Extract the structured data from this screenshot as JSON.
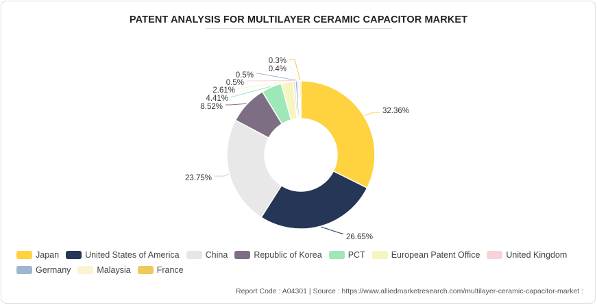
{
  "title": "PATENT ANALYSIS FOR MULTILAYER CERAMIC CAPACITOR MARKET",
  "footer": "Report Code : A04301  |  Source : https://www.alliedmarketresearch.com/multilayer-ceramic-capacitor-market :",
  "chart_data": {
    "type": "pie",
    "variant": "donut",
    "title": "PATENT ANALYSIS FOR MULTILAYER CERAMIC CAPACITOR MARKET",
    "legend_position": "bottom",
    "slices": [
      {
        "name": "Japan",
        "value": 32.36,
        "label": "32.36%",
        "color": "#FFD23F"
      },
      {
        "name": "United States of America",
        "value": 26.65,
        "label": "26.65%",
        "color": "#253656"
      },
      {
        "name": "China",
        "value": 23.75,
        "label": "23.75%",
        "color": "#E8E8E8"
      },
      {
        "name": "Republic of Korea",
        "value": 8.52,
        "label": "8.52%",
        "color": "#7E6E84"
      },
      {
        "name": "PCT",
        "value": 4.41,
        "label": "4.41%",
        "color": "#9EE8B8"
      },
      {
        "name": "European Patent Office",
        "value": 2.61,
        "label": "2.61%",
        "color": "#F6F5C0"
      },
      {
        "name": "United Kingdom",
        "value": 0.5,
        "label": "0.5%",
        "color": "#F5D4D8"
      },
      {
        "name": "Germany",
        "value": 0.5,
        "label": "0.5%",
        "color": "#9EB6CE"
      },
      {
        "name": "Malaysia",
        "value": 0.4,
        "label": "0.4%",
        "color": "#FCF3D2"
      },
      {
        "name": "France",
        "value": 0.3,
        "label": "0.3%",
        "color": "#EFC95C"
      }
    ]
  }
}
